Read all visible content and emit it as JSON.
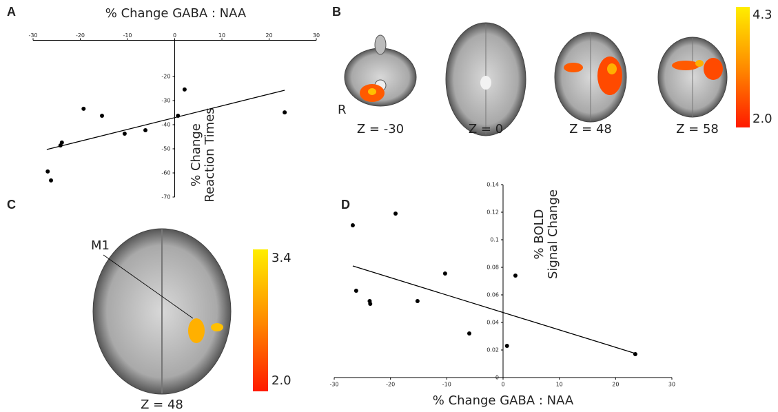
{
  "chart_data": [
    {
      "type": "scatter",
      "panel": "A",
      "title": "% Change GABA : NAA",
      "y_label": [
        "% Change",
        "Reaction Times"
      ],
      "x_axis": "top",
      "color": "#000000",
      "x": [
        -26.9,
        -26.2,
        -24.2,
        -23.9,
        -19.3,
        -15.4,
        -10.6,
        -6.2,
        0.7,
        2.1,
        23.3
      ],
      "y": [
        -59.4,
        -63.1,
        -48.6,
        -47.4,
        -33.4,
        -36.3,
        -43.7,
        -42.3,
        -36.3,
        -25.4,
        -34.9
      ],
      "fit": {
        "x": [
          -27.1,
          23.3
        ],
        "y": [
          -50.3,
          -25.7
        ]
      },
      "xlim": [
        -30,
        30
      ],
      "xticks": [
        -30,
        -20,
        -10,
        0,
        10,
        20,
        30
      ],
      "ylim": [
        -70,
        -5
      ],
      "yticks": [
        -20,
        -30,
        -40,
        -50,
        -60,
        -70
      ]
    },
    {
      "type": "scatter",
      "panel": "D",
      "x_label": "% Change GABA : NAA",
      "y_label": [
        "% BOLD",
        "Signal Change"
      ],
      "x_axis": "bottom",
      "color": "#000000",
      "x": [
        -26.7,
        -19.1,
        -26.1,
        -23.7,
        -23.6,
        -15.2,
        -10.3,
        -6.0,
        0.7,
        2.2,
        23.5
      ],
      "y": [
        0.1105,
        0.119,
        0.063,
        0.0555,
        0.0535,
        0.0555,
        0.0755,
        0.032,
        0.023,
        0.074,
        0.017
      ],
      "fit": {
        "x": [
          -26.7,
          23.5
        ],
        "y": [
          0.081,
          0.0175
        ]
      },
      "xlim": [
        -30,
        30
      ],
      "xticks": [
        -30,
        -20,
        -10,
        0,
        10,
        20,
        30
      ],
      "ylim": [
        0,
        0.14
      ],
      "yticks": [
        0,
        0.02,
        0.04,
        0.06,
        0.08,
        0.1,
        0.12,
        0.14
      ]
    }
  ],
  "panel_b": {
    "panel": "B",
    "side": "R",
    "slices": [
      "Z = -30",
      "Z = 0",
      "Z = 48",
      "Z = 58"
    ],
    "colorbar": {
      "max": 4.3,
      "min": {
        "value": 2,
        "label": "2.0"
      }
    }
  },
  "panel_c": {
    "panel": "C",
    "region": "M1",
    "slice": "Z = 48",
    "colorbar": {
      "max": 3.4,
      "min": {
        "value": 2,
        "label": "2.0"
      }
    }
  }
}
